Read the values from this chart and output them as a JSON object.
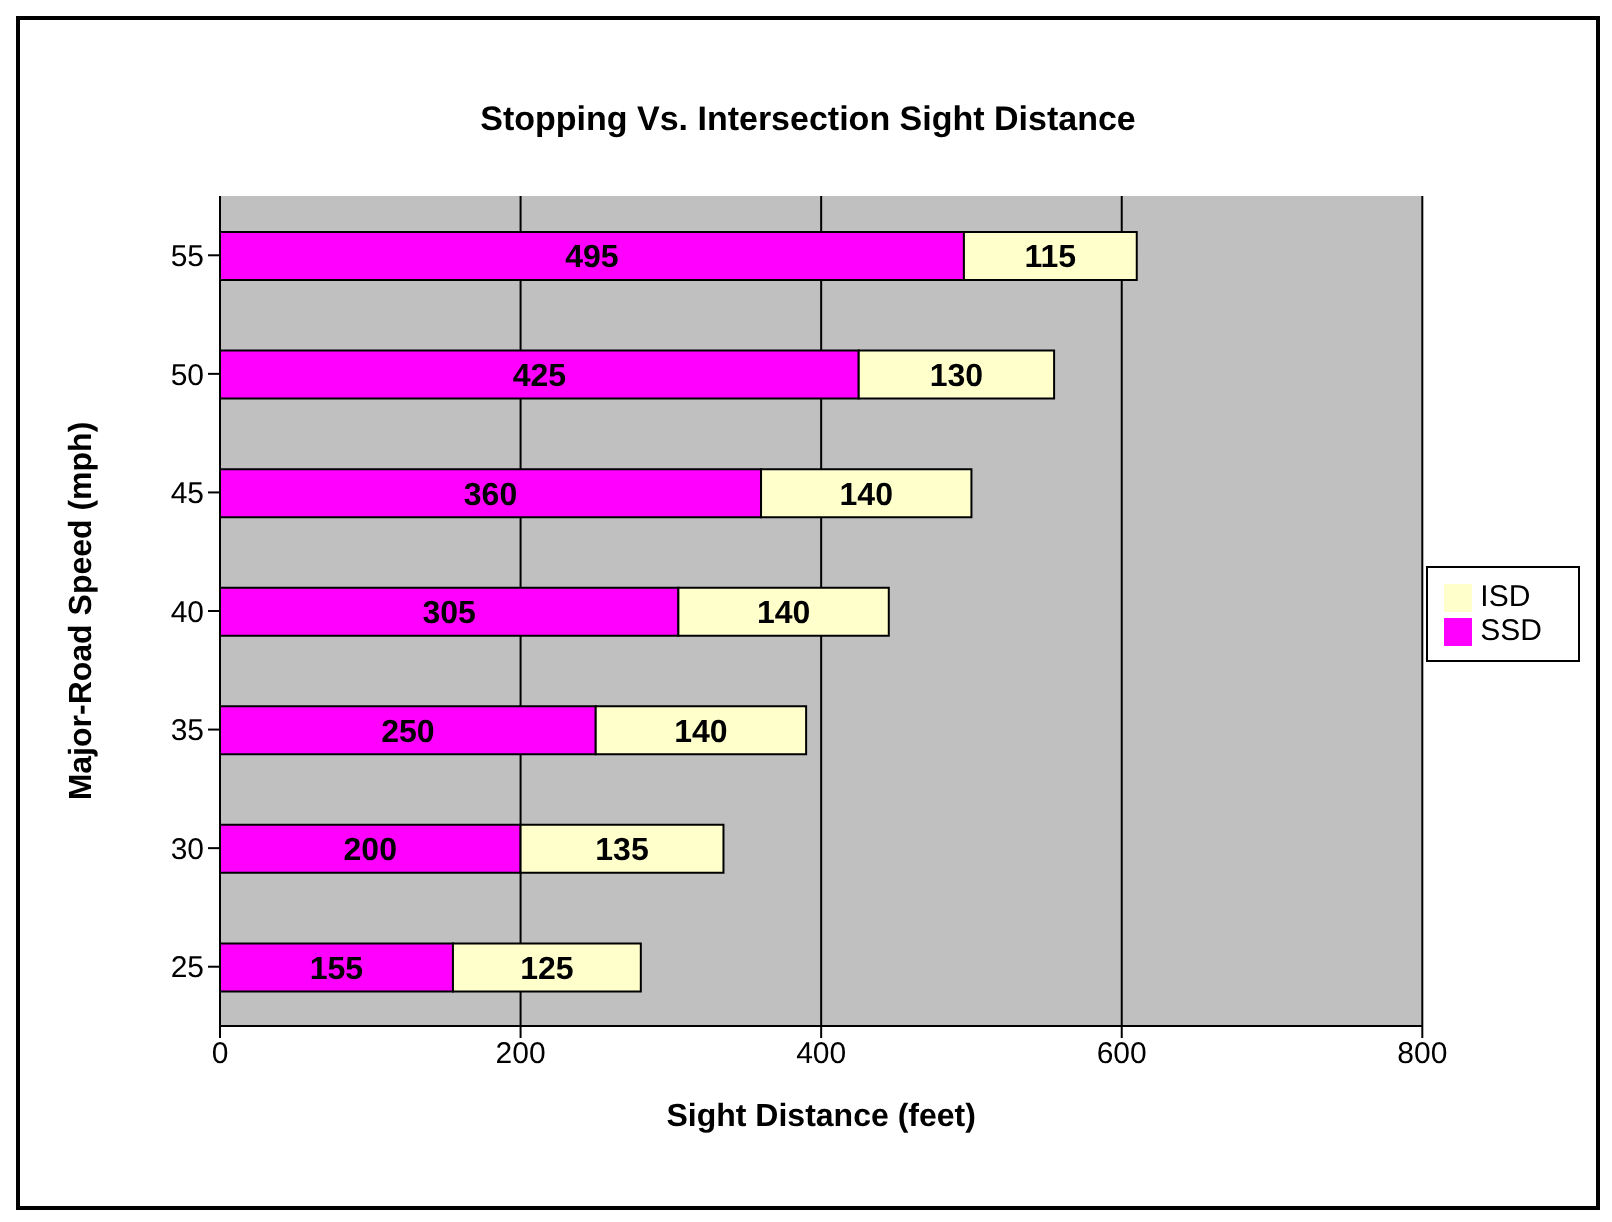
{
  "chart_data": {
    "type": "bar",
    "orientation": "horizontal",
    "stacked": true,
    "title": "Stopping Vs. Intersection Sight Distance",
    "xlabel": "Sight Distance (feet)",
    "ylabel": "Major-Road Speed (mph)",
    "categories": [
      "55",
      "50",
      "45",
      "40",
      "35",
      "30",
      "25"
    ],
    "series": [
      {
        "name": "SSD",
        "color": "#ff00ff",
        "values": [
          495,
          425,
          360,
          305,
          250,
          200,
          155
        ]
      },
      {
        "name": "ISD",
        "color": "#ffffcc",
        "values": [
          115,
          130,
          140,
          140,
          140,
          135,
          125
        ]
      }
    ],
    "xlim": [
      0,
      800
    ],
    "xticks": [
      0,
      200,
      400,
      600,
      800
    ],
    "grid": "x",
    "legend": "right",
    "data_labels": true
  }
}
